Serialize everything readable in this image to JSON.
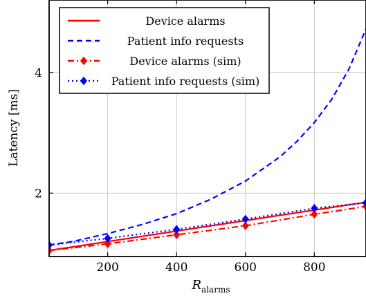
{
  "chart_data": {
    "type": "line",
    "title": "",
    "xlabel": "R",
    "xlabel_sub": "alarms",
    "ylabel": "Latency [ms]",
    "xlim": [
      30,
      950
    ],
    "ylim": [
      0.95,
      5.2
    ],
    "grid": true,
    "legend_placement": "top-left",
    "x_ticks": [
      200,
      400,
      600,
      800
    ],
    "y_ticks": [
      2,
      4
    ],
    "series": [
      {
        "name": "Device alarms",
        "color": "#ff0000",
        "style": "solid",
        "marker": "none",
        "x": [
          30,
          950
        ],
        "y": [
          1.05,
          1.85
        ]
      },
      {
        "name": "Patient info requests",
        "color": "#0000ff",
        "style": "dashed",
        "marker": "none",
        "x": [
          30,
          100,
          200,
          300,
          400,
          500,
          600,
          700,
          750,
          800,
          850,
          900,
          950
        ],
        "y": [
          1.14,
          1.2,
          1.33,
          1.48,
          1.66,
          1.9,
          2.2,
          2.6,
          2.86,
          3.17,
          3.55,
          4.05,
          4.72
        ]
      },
      {
        "name": "Device alarms (sim)",
        "color": "#ff0000",
        "style": "dashdot",
        "marker": "diamond",
        "x": [
          30,
          200,
          400,
          600,
          800,
          950
        ],
        "y": [
          1.05,
          1.16,
          1.31,
          1.46,
          1.65,
          1.78
        ]
      },
      {
        "name": "Patient info requests (sim)",
        "color": "#0000ff",
        "style": "dotted",
        "marker": "diamond",
        "x": [
          30,
          200,
          400,
          600,
          800,
          950
        ],
        "y": [
          1.14,
          1.25,
          1.4,
          1.57,
          1.75,
          1.84
        ]
      }
    ]
  }
}
